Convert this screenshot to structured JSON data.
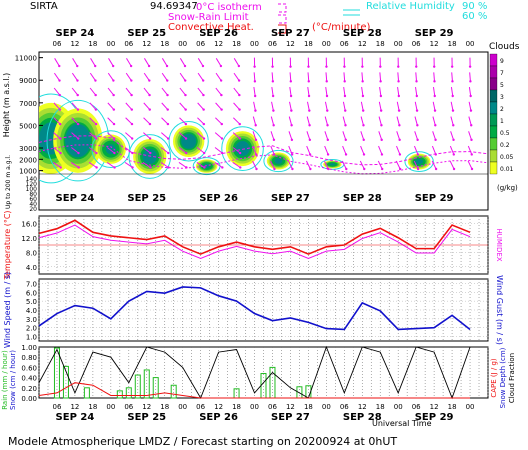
{
  "header": {
    "site": "SIRTA",
    "coord": "94.69347",
    "legend_isotherm": "0°C isotherm",
    "legend_snowrain": "Snow-Rain Limit",
    "legend_convective": "Convective Heat.",
    "legend_convective_unit": "(°C/minute)",
    "legend_rh": "Relative Humidity",
    "legend_rh_90": "90 %",
    "legend_rh_60": "60 %"
  },
  "footer": {
    "title": "Modele Atmospherique LMDZ / Forecast starting on 20200924 at 0hUT",
    "universal_time": "Universal Time"
  },
  "colors": {
    "magenta": "#ee11ee",
    "red": "#ee1111",
    "blue": "#1111cc",
    "green": "#22bb22",
    "cyan": "#22dddd",
    "black": "#000000"
  },
  "chart_data": [
    {
      "type": "heatmap",
      "name": "clouds",
      "day_labels": [
        "SEP 24",
        "SEP 25",
        "SEP 26",
        "SEP 27",
        "SEP 28",
        "SEP 29"
      ],
      "hour_labels": [
        "06",
        "12",
        "18",
        "00"
      ],
      "ylabel_main": "Height  (m  a.s.l.)",
      "ylabel_low": "Up to 200 m a.g.l.",
      "y_ticks_upper": [
        "11000",
        "9000",
        "7000",
        "5000",
        "3000",
        "2000",
        "1000"
      ],
      "y_ticks_lower": [
        "140",
        "120",
        "100",
        "80",
        "60",
        "40",
        "20"
      ],
      "colorbar_title": "Clouds",
      "colorbar_unit": "(g/kg)",
      "colorbar_labels": [
        "9",
        "7",
        "5",
        "3",
        "2",
        "1",
        "0.5",
        "0.2",
        "0.05",
        "0.01"
      ],
      "colorbar_colors": [
        "#cc00cc",
        "#aa00aa",
        "#880088",
        "#006666",
        "#008888",
        "#009955",
        "#00aa44",
        "#55cc33",
        "#aadd33",
        "#eeff22"
      ],
      "cloud_blobs": [
        {
          "t": 4,
          "h0": 700,
          "h1": 7000,
          "core": 0.85
        },
        {
          "t": 13,
          "h0": 800,
          "h1": 6500,
          "core": 1
        },
        {
          "t": 24,
          "h0": 1600,
          "h1": 4200,
          "core": 0.6
        },
        {
          "t": 37,
          "h0": 700,
          "h1": 3800,
          "core": 0.8
        },
        {
          "t": 50,
          "h0": 2200,
          "h1": 5000,
          "core": 0.9
        },
        {
          "t": 56,
          "h0": 800,
          "h1": 2000,
          "core": 0.5
        },
        {
          "t": 68,
          "h0": 1400,
          "h1": 4500,
          "core": 0.8
        },
        {
          "t": 80,
          "h0": 1100,
          "h1": 2600,
          "core": 0.6
        },
        {
          "t": 98,
          "h0": 1200,
          "h1": 1900,
          "core": 0.4
        },
        {
          "t": 127,
          "h0": 1100,
          "h1": 2500,
          "core": 0.6
        }
      ]
    },
    {
      "type": "line",
      "name": "temperature",
      "ylabel": "Temperature (°C)",
      "ylabel_right": "HUMIDEX",
      "y_ticks": [
        "16.0",
        "12.0",
        "8.0",
        "4.0"
      ],
      "ylim": [
        2,
        18
      ],
      "x_hours": [
        0,
        6,
        12,
        18,
        24,
        30,
        36,
        42,
        48,
        54,
        60,
        66,
        72,
        78,
        84,
        90,
        96,
        102,
        108,
        114,
        120,
        126,
        132,
        138,
        144
      ],
      "series": [
        {
          "values": [
            13.2,
            14.5,
            16.8,
            13.5,
            12.5,
            12,
            11.5,
            12.5,
            9.5,
            7.5,
            9.5,
            10.8,
            9.5,
            8.8,
            9.5,
            7.5,
            9.5,
            10,
            13,
            14.6,
            12,
            9,
            9,
            15.5,
            13.5
          ]
        },
        {
          "values": [
            12,
            13.3,
            15.5,
            12.3,
            11.3,
            10.8,
            10.3,
            11.3,
            8.3,
            6.3,
            8.3,
            9.6,
            8.3,
            7.6,
            8.3,
            6.3,
            8.3,
            8.8,
            11.8,
            13.4,
            10.8,
            7.8,
            7.8,
            14.3,
            12.3
          ]
        }
      ]
    },
    {
      "type": "line",
      "name": "wind",
      "ylabel": "Wind Speed (m / s)",
      "ylabel_right": "Wind Gust (m / s)",
      "y_ticks": [
        "7.0",
        "6.0",
        "5.0",
        "4.0",
        "3.0",
        "2.0",
        "1.0"
      ],
      "ylim": [
        0.5,
        7.5
      ],
      "x_hours": [
        0,
        6,
        12,
        18,
        24,
        30,
        36,
        42,
        48,
        54,
        60,
        66,
        72,
        78,
        84,
        90,
        96,
        102,
        108,
        114,
        120,
        126,
        132,
        138,
        144
      ],
      "series": [
        {
          "values": [
            2.2,
            3.6,
            4.5,
            4.2,
            3.0,
            5.0,
            6.1,
            5.9,
            6.6,
            6.5,
            5.6,
            5.0,
            3.6,
            2.8,
            3.1,
            2.6,
            1.9,
            1.8,
            4.8,
            3.9,
            1.8,
            1.9,
            2.0,
            3.4,
            1.8
          ]
        }
      ]
    },
    {
      "type": "bar",
      "name": "precipitation",
      "ylabel": "Rain (mm / hour)",
      "ylabel2": "Snow (cm / hour)",
      "ylabel_right": "CAPE (J / g)",
      "ylabel_right2": "Snow Depth (cm)",
      "ylabel_right3": "Cloud Fraction",
      "y_ticks": [
        "1.00",
        "0.80",
        "0.60",
        "0.40",
        "0.20",
        "0.00"
      ],
      "ylim": [
        0,
        1
      ],
      "rain_bars": [
        {
          "x": 6,
          "v": 0.98
        },
        {
          "x": 9,
          "v": 0.62
        },
        {
          "x": 16,
          "v": 0.2
        },
        {
          "x": 27,
          "v": 0.14
        },
        {
          "x": 30,
          "v": 0.2
        },
        {
          "x": 33,
          "v": 0.45
        },
        {
          "x": 36,
          "v": 0.55
        },
        {
          "x": 39,
          "v": 0.4
        },
        {
          "x": 45,
          "v": 0.25
        },
        {
          "x": 66,
          "v": 0.18
        },
        {
          "x": 75,
          "v": 0.48
        },
        {
          "x": 78,
          "v": 0.6
        },
        {
          "x": 87,
          "v": 0.22
        },
        {
          "x": 90,
          "v": 0.24
        }
      ],
      "cape": [
        0.05,
        0.1,
        0.3,
        0.25,
        0.05,
        0.05,
        0.05,
        0.1,
        0.05,
        0,
        0,
        0,
        0,
        0,
        0,
        0,
        0,
        0,
        0,
        0,
        0,
        0,
        0,
        0,
        0
      ],
      "cloud_fraction": [
        0.3,
        0.95,
        0.1,
        0.9,
        0.8,
        0.3,
        1.0,
        0.9,
        0.6,
        0.0,
        0.9,
        0.95,
        0.1,
        0.5,
        0.2,
        0.0,
        1.0,
        0.1,
        1.0,
        0.9,
        0.1,
        1.0,
        0.9,
        0.0,
        1.0
      ]
    }
  ]
}
